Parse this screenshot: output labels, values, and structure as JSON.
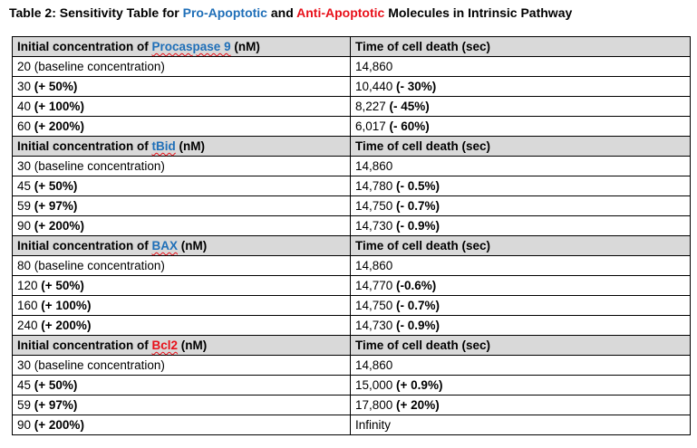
{
  "title": {
    "prefix": "Table 2: Sensitivity Table for ",
    "pro": "Pro-Apoptotic",
    "and": " and ",
    "anti": "Anti-Apoptotic",
    "suffix": " Molecules in Intrinsic Pathway"
  },
  "colors": {
    "pro": "#1f6fb8",
    "anti": "#e8101a",
    "header_bg": "#d9d9d9"
  },
  "sections": [
    {
      "head_prefix": "Initial concentration of ",
      "molecule": "Procaspase 9",
      "molecule_color": "blue",
      "head_unit": " (nM)",
      "head_right": "Time of cell death (sec)",
      "rows": [
        {
          "conc": "20 (baseline concentration)",
          "change": "",
          "time": "14,860",
          "delta": ""
        },
        {
          "conc": "30 ",
          "change": "(+ 50%)",
          "time": "10,440 ",
          "delta": "(- 30%)"
        },
        {
          "conc": "40 ",
          "change": "(+ 100%)",
          "time": "8,227 ",
          "delta": "(- 45%)"
        },
        {
          "conc": "60 ",
          "change": "(+ 200%)",
          "time": "6,017 ",
          "delta": "(- 60%)"
        }
      ]
    },
    {
      "head_prefix": "Initial concentration of ",
      "molecule": "tBid",
      "molecule_color": "blue",
      "head_unit": " (nM)",
      "head_right": "Time of cell death (sec)",
      "rows": [
        {
          "conc": "30 (baseline concentration)",
          "change": "",
          "time": "14,860",
          "delta": ""
        },
        {
          "conc": "45 ",
          "change": "(+ 50%)",
          "time": "14,780 ",
          "delta": "(- 0.5%)"
        },
        {
          "conc": "59 ",
          "change": "(+ 97%)",
          "time": "14,750 ",
          "delta": "(- 0.7%)"
        },
        {
          "conc": "90 ",
          "change": "(+ 200%)",
          "time": "14,730 ",
          "delta": "(- 0.9%)"
        }
      ]
    },
    {
      "head_prefix": "Initial concentration of ",
      "molecule": "BAX",
      "molecule_color": "blue",
      "head_unit": " (nM)",
      "head_right": "Time of cell death (sec)",
      "rows": [
        {
          "conc": "80 (baseline concentration)",
          "change": "",
          "time": "14,860",
          "delta": ""
        },
        {
          "conc": "120 ",
          "change": "(+ 50%)",
          "time": "14,770 ",
          "delta": "(-0.6%)"
        },
        {
          "conc": "160 ",
          "change": "(+ 100%)",
          "time": "14,750 ",
          "delta": "(- 0.7%)"
        },
        {
          "conc": "240 ",
          "change": "(+ 200%)",
          "time": "14,730 ",
          "delta": "(- 0.9%)"
        }
      ]
    },
    {
      "head_prefix": "Initial concentration of ",
      "molecule": "Bcl2",
      "molecule_color": "red",
      "head_unit": " (nM)",
      "head_right": "Time of cell death (sec)",
      "rows": [
        {
          "conc": "30 (baseline concentration)",
          "change": "",
          "time": "14,860",
          "delta": ""
        },
        {
          "conc": "45 ",
          "change": "(+ 50%)",
          "time": "15,000 ",
          "delta": "(+ 0.9%)"
        },
        {
          "conc": "59 ",
          "change": "(+ 97%)",
          "time": "17,800 ",
          "delta": "(+ 20%)"
        },
        {
          "conc": "90 ",
          "change": "(+ 200%)",
          "time": "Infinity",
          "delta": ""
        }
      ]
    }
  ]
}
